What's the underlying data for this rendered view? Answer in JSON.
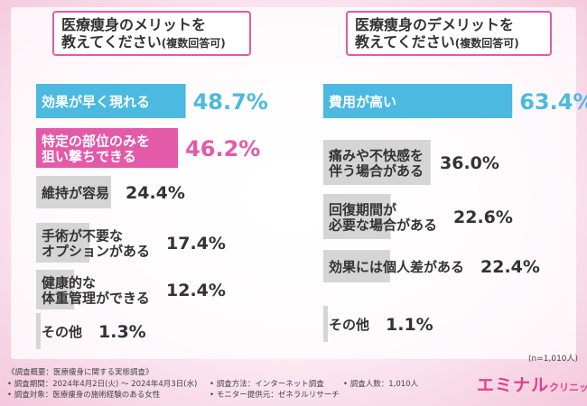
{
  "chart_data": [
    {
      "type": "bar",
      "orientation": "horizontal",
      "title_line1": "医療痩身のメリットを",
      "title_line2": "教えてください",
      "title_note": "(複数回答可)",
      "unit": "%",
      "categories": [
        [
          "効果が早く現れる"
        ],
        [
          "特定の部位のみを",
          "狙い撃ちできる"
        ],
        [
          "維持が容易"
        ],
        [
          "手術が不要な",
          "オプションがある"
        ],
        [
          "健康的な",
          "体重管理ができる"
        ],
        [
          "その他"
        ]
      ],
      "values": [
        48.7,
        46.2,
        24.4,
        17.4,
        12.4,
        1.3
      ],
      "colors": [
        "#4bb9e0",
        "#e35aa9",
        "#d5d5d5",
        "#d5d5d5",
        "#d5d5d5",
        "#d5d5d5"
      ],
      "label_colors": [
        "#ffffff",
        "#ffffff",
        "#333333",
        "#333333",
        "#333333",
        "#333333"
      ],
      "value_colors": [
        "#4bb9e0",
        "#e35aa9",
        "#333333",
        "#333333",
        "#333333",
        "#333333"
      ],
      "xlim": [
        0,
        100
      ]
    },
    {
      "type": "bar",
      "orientation": "horizontal",
      "title_line1": "医療痩身のデメリットを",
      "title_line2": "教えてください",
      "title_note": "(複数回答可)",
      "unit": "%",
      "categories": [
        [
          "費用が高い"
        ],
        [
          "痛みや不快感を",
          "伴う場合がある"
        ],
        [
          "回復期間が",
          "必要な場合がある"
        ],
        [
          "効果には個人差がある"
        ],
        [
          "その他"
        ]
      ],
      "values": [
        63.4,
        36.0,
        22.6,
        22.4,
        1.1
      ],
      "colors": [
        "#4bb9e0",
        "#d5d5d5",
        "#d5d5d5",
        "#d5d5d5",
        "#d5d5d5"
      ],
      "label_colors": [
        "#ffffff",
        "#333333",
        "#333333",
        "#333333",
        "#333333"
      ],
      "value_colors": [
        "#4bb9e0",
        "#333333",
        "#333333",
        "#333333",
        "#333333"
      ],
      "xlim": [
        0,
        100
      ]
    }
  ],
  "sample_size": "(n=1,010人)",
  "footer": {
    "survey_overview": "《調査概要：医療痩身に関する実態調査》",
    "survey_period": "• 調査期間：2024年4月2日(火) ～ 2024年4月3日(水)",
    "survey_target": "• 調査対象：医療痩身の施術経験のある女性",
    "survey_method": "• 調査方法：インターネット調査",
    "monitor_provider": "• モニター提供元：ゼネラルリサーチ",
    "survey_count": "• 調査人数：1,010人"
  },
  "brand": {
    "name": "エミナル",
    "suffix": "クリニック",
    "color": "#e0408e"
  }
}
